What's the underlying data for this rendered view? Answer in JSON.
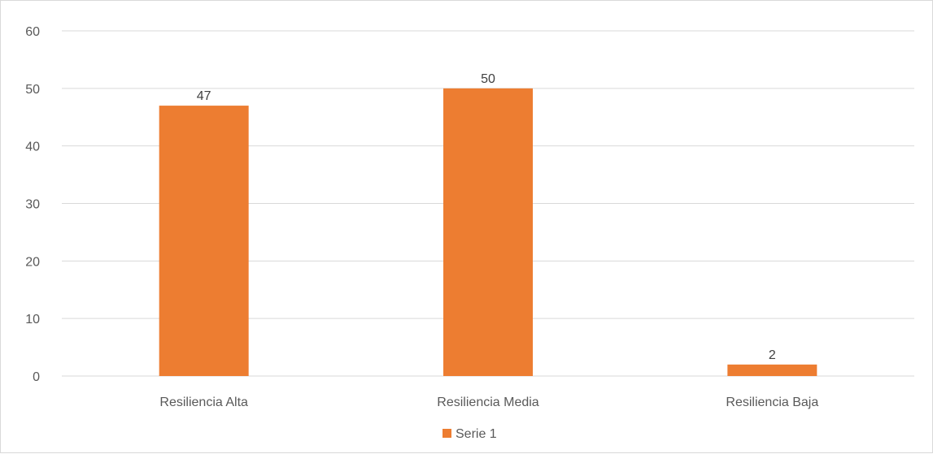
{
  "chart_data": {
    "type": "bar",
    "title": "",
    "xlabel": "",
    "ylabel": "",
    "categories": [
      "Resiliencia Alta",
      "Resiliencia Media",
      "Resiliencia Baja"
    ],
    "series": [
      {
        "name": "Serie 1",
        "values": [
          47,
          50,
          2
        ],
        "color": "#ed7d31"
      }
    ],
    "ylim": [
      0,
      60
    ],
    "yticks": [
      0,
      10,
      20,
      30,
      40,
      50,
      60
    ],
    "grid": true,
    "gridline_color": "#d9d9d9",
    "legend_position": "bottom",
    "data_labels": true
  }
}
